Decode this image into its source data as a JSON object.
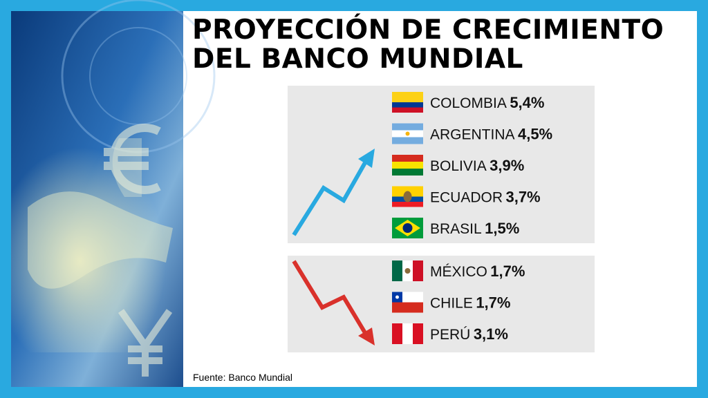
{
  "header": {
    "title": [
      "PROYECCIÓN DE CRECIMIENTO",
      "DEL BANCO MUNDIAL"
    ]
  },
  "groups": [
    {
      "trend": "up",
      "rows": [
        {
          "country": "COLOMBIA",
          "value": "5,4%"
        },
        {
          "country": "ARGENTINA",
          "value": "4,5%"
        },
        {
          "country": "BOLIVIA",
          "value": "3,9%"
        },
        {
          "country": "ECUADOR",
          "value": "3,7%"
        },
        {
          "country": "BRASIL",
          "value": "1,5%"
        }
      ]
    },
    {
      "trend": "down",
      "rows": [
        {
          "country": "MÉXICO",
          "value": "1,7%"
        },
        {
          "country": "CHILE",
          "value": "1,7%"
        },
        {
          "country": "PERÚ",
          "value": "3,1%"
        }
      ]
    }
  ],
  "source": "Fuente: Banco Mundial"
}
